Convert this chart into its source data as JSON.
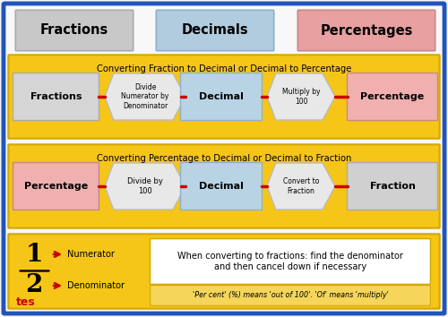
{
  "bg_color": "#f5f5f5",
  "outer_border_color": "#2255bb",
  "inner_bg": "#f8f8f8",
  "gold": "#f5c518",
  "gold_edge": "#d4a800",
  "title_tabs": [
    {
      "label": "Fractions",
      "color_top": "#d8d8d8",
      "color": "#c8c8c8",
      "edge": "#aaaaaa"
    },
    {
      "label": "Decimals",
      "color_top": "#c0d8e8",
      "color": "#b0ccde",
      "edge": "#90b0c8"
    },
    {
      "label": "Percentages",
      "color_top": "#f0b0b0",
      "color": "#e8a0a0",
      "edge": "#c88888"
    }
  ],
  "sec1_title": "Converting Fraction to Decimal or Decimal to Percentage",
  "sec2_title": "Converting Percentage to Decimal or Decimal to Fraction",
  "flow1": [
    {
      "label": "Fractions",
      "color": "#d5d5d5",
      "edge": "#aaaaaa",
      "shape": "rect"
    },
    {
      "label": "Divide\nNumerator by\nDenominator",
      "color": "#e8e8e8",
      "edge": "#bbbbbb",
      "shape": "chevron"
    },
    {
      "label": "Decimal",
      "color": "#b8d4e4",
      "edge": "#90b0c8",
      "shape": "rect"
    },
    {
      "label": "Multiply by\n100",
      "color": "#e8e8e8",
      "edge": "#bbbbbb",
      "shape": "chevron"
    },
    {
      "label": "Percentage",
      "color": "#f0b0b0",
      "edge": "#c88888",
      "shape": "rect"
    }
  ],
  "flow2": [
    {
      "label": "Percentage",
      "color": "#f0b0b0",
      "edge": "#c88888",
      "shape": "rect"
    },
    {
      "label": "Divide by\n100",
      "color": "#e8e8e8",
      "edge": "#bbbbbb",
      "shape": "chevron"
    },
    {
      "label": "Decimal",
      "color": "#b8d4e4",
      "edge": "#90b0c8",
      "shape": "rect"
    },
    {
      "label": "Convert to\nFraction",
      "color": "#e8e8e8",
      "edge": "#bbbbbb",
      "shape": "chevron"
    },
    {
      "label": "Fraction",
      "color": "#d0d0d0",
      "edge": "#aaaaaa",
      "shape": "rect"
    }
  ],
  "note_main": "When converting to fractions: find the denominator\nand then cancel down if necessary",
  "note_sub": "'Per cent' (%) means 'out of 100'. 'Of' means 'multiply'",
  "arrow_color": "#cc0000"
}
